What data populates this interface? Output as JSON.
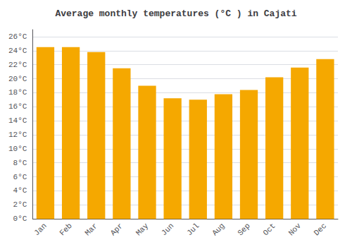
{
  "chart_data": {
    "type": "bar",
    "title": "Average monthly temperatures (°C ) in Cajati",
    "categories": [
      "Jan",
      "Feb",
      "Mar",
      "Apr",
      "May",
      "Jun",
      "Jul",
      "Aug",
      "Sep",
      "Oct",
      "Nov",
      "Dec"
    ],
    "values": [
      24.5,
      24.5,
      23.8,
      21.5,
      19.0,
      17.2,
      17.0,
      17.8,
      18.4,
      20.2,
      21.6,
      22.8
    ],
    "color": "#F5A800",
    "ylim": [
      0,
      27
    ],
    "yticks": [
      {
        "value": 0,
        "label": "0°C"
      },
      {
        "value": 2,
        "label": "2°C"
      },
      {
        "value": 4,
        "label": "4°C"
      },
      {
        "value": 6,
        "label": "6°C"
      },
      {
        "value": 8,
        "label": "8°C"
      },
      {
        "value": 10,
        "label": "10°C"
      },
      {
        "value": 12,
        "label": "12°C"
      },
      {
        "value": 14,
        "label": "14°C"
      },
      {
        "value": 16,
        "label": "16°C"
      },
      {
        "value": 18,
        "label": "18°C"
      },
      {
        "value": 20,
        "label": "20°C"
      },
      {
        "value": 22,
        "label": "22°C"
      },
      {
        "value": 24,
        "label": "24°C"
      },
      {
        "value": 26,
        "label": "26°C"
      }
    ],
    "grid": true
  }
}
